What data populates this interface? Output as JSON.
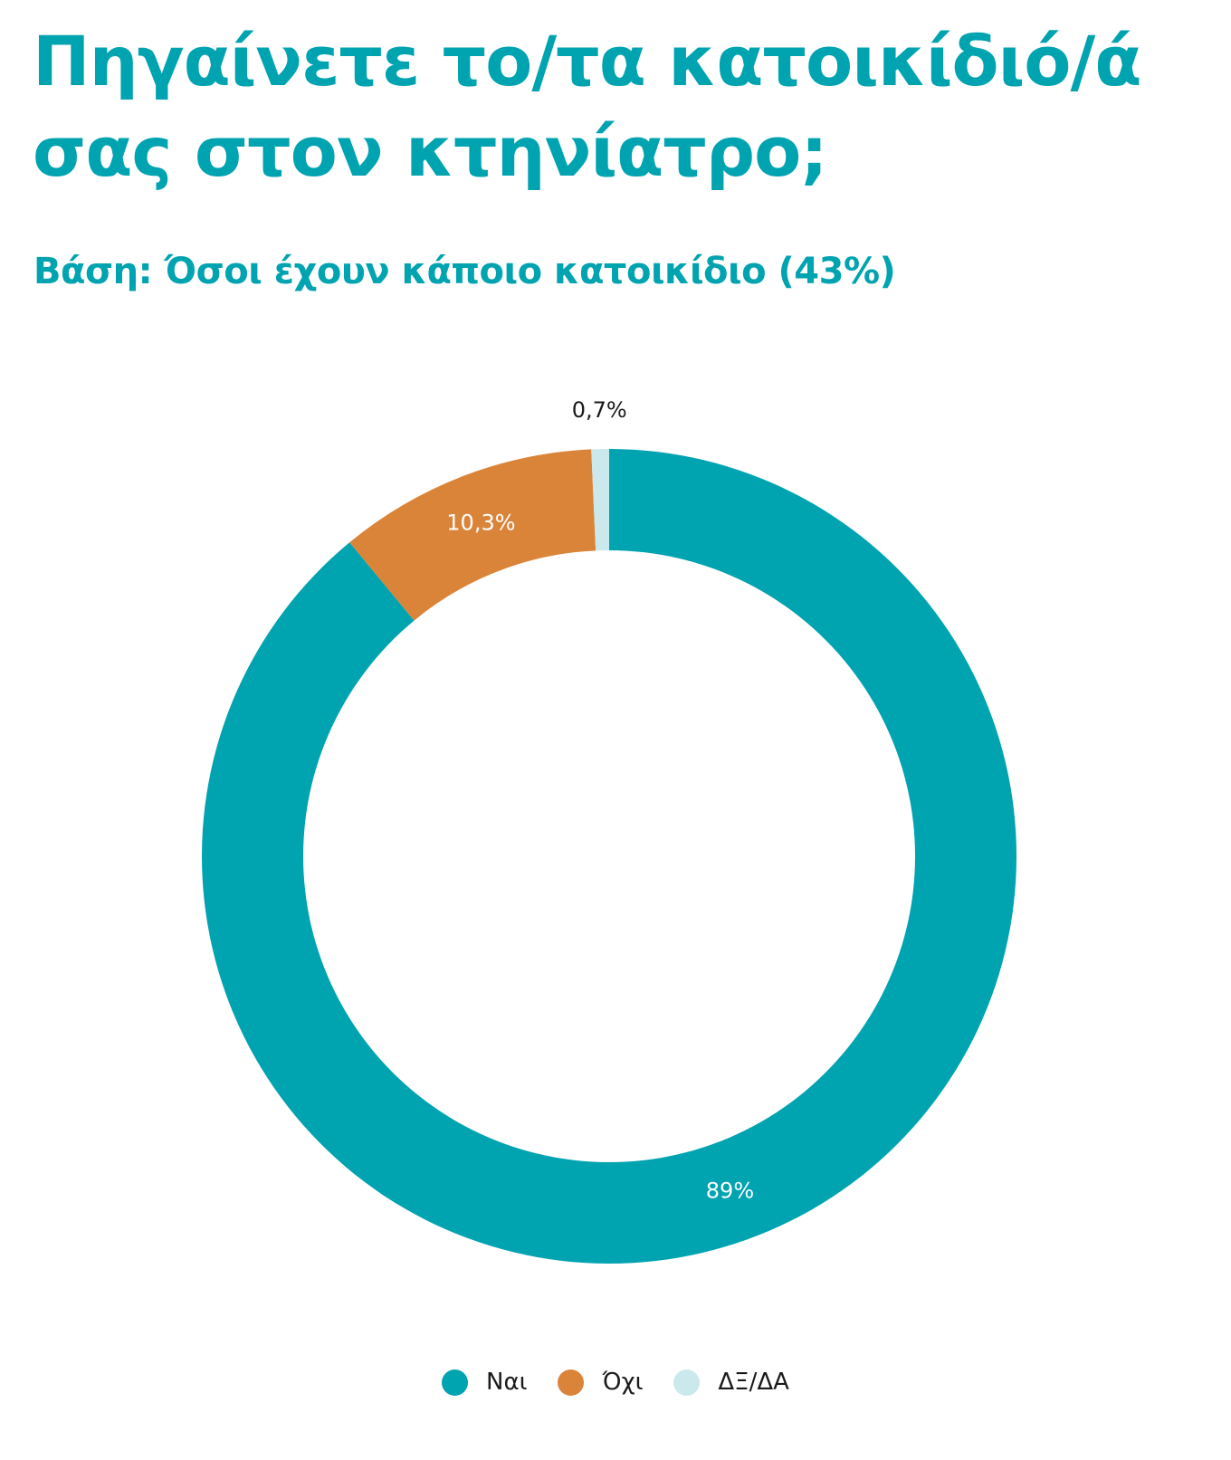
{
  "title": "Πηγαίνετε το/τα κατοικίδιό/ά σας στον κτηνίατρο;",
  "subtitle": "Βάση: Όσοι έχουν κάποιο κατοικίδιο (43%)",
  "colors": {
    "title": "#00a3b0",
    "label_dark": "#1a1a1a",
    "label_light": "#ffffff"
  },
  "chart_data": {
    "type": "pie",
    "variant": "donut",
    "categories": [
      "Ναι",
      "Όχι",
      "ΔΞ/ΔΑ"
    ],
    "values": [
      89,
      10.3,
      0.7
    ],
    "labels": [
      "89%",
      "10,3%",
      "0,7%"
    ],
    "colors": [
      "#00a3b0",
      "#da843a",
      "#cbe9ec"
    ],
    "legend_position": "bottom-center"
  }
}
